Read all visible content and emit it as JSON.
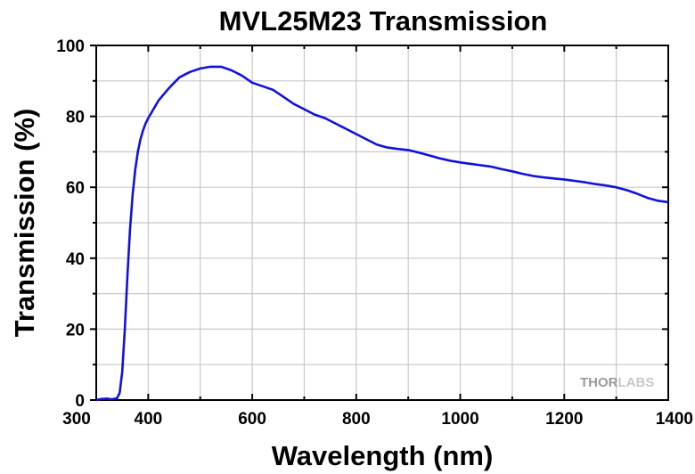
{
  "chart_data": {
    "type": "line",
    "title": "MVL25M23 Transmission",
    "xlabel": "Wavelength (nm)",
    "ylabel": "Transmission (%)",
    "xlim": [
      300,
      1400
    ],
    "ylim": [
      0,
      100
    ],
    "x_ticks": [
      300,
      400,
      600,
      800,
      1000,
      1200,
      1400
    ],
    "y_ticks": [
      0,
      20,
      40,
      60,
      80,
      100
    ],
    "grid": true,
    "legend": "none",
    "series": [
      {
        "color": "#1111dd",
        "x": [
          300,
          310,
          320,
          330,
          340,
          345,
          350,
          355,
          360,
          365,
          370,
          375,
          380,
          385,
          390,
          395,
          400,
          410,
          420,
          440,
          460,
          480,
          500,
          520,
          540,
          560,
          580,
          600,
          620,
          640,
          660,
          680,
          700,
          720,
          740,
          760,
          780,
          800,
          820,
          840,
          860,
          880,
          900,
          920,
          940,
          960,
          980,
          1000,
          1020,
          1040,
          1060,
          1080,
          1100,
          1120,
          1140,
          1160,
          1180,
          1200,
          1220,
          1240,
          1260,
          1280,
          1300,
          1320,
          1340,
          1360,
          1380,
          1400
        ],
        "y": [
          0,
          0.3,
          0.4,
          0.2,
          0.5,
          2,
          8,
          20,
          35,
          48,
          58,
          65,
          70,
          73.5,
          76,
          78,
          79.5,
          82,
          84.5,
          88,
          91,
          92.5,
          93.5,
          94,
          94,
          93,
          91.5,
          89.5,
          88.5,
          87.5,
          85.5,
          83.5,
          82,
          80.5,
          79.5,
          78,
          76.5,
          75,
          73.5,
          72,
          71.2,
          70.8,
          70.5,
          69.8,
          69,
          68.2,
          67.5,
          67,
          66.6,
          66.2,
          65.8,
          65.1,
          64.5,
          63.8,
          63.2,
          62.8,
          62.5,
          62.2,
          61.8,
          61.4,
          60.9,
          60.5,
          60,
          59.2,
          58.2,
          57,
          56.2,
          55.8
        ]
      }
    ]
  },
  "logo": {
    "text_dark": "THOR",
    "text_light": "LABS"
  }
}
